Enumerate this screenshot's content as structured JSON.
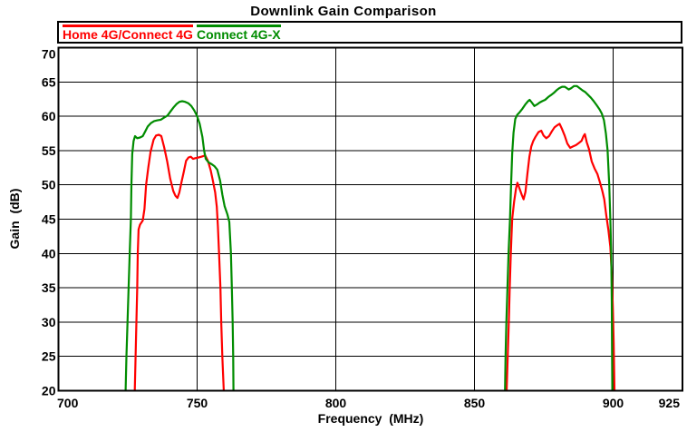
{
  "chart_data": {
    "type": "line",
    "title": "Downlink Gain Comparison",
    "xlabel": "Frequency  (MHz)",
    "ylabel": "Gain  (dB)",
    "xlim": [
      700,
      925
    ],
    "ylim": [
      20,
      70
    ],
    "x_ticks": [
      700,
      750,
      800,
      850,
      900,
      925
    ],
    "y_ticks": [
      70,
      65,
      60,
      55,
      50,
      45,
      40,
      35,
      30,
      25,
      20
    ],
    "x_gridlines": [
      750,
      800,
      850,
      900
    ],
    "y_gridlines": [
      65,
      60,
      55,
      50,
      45,
      40,
      35,
      30,
      25
    ],
    "grid": true,
    "legend_position": "top-left",
    "background_color": "#ffffff",
    "axis_color": "#000000",
    "series": [
      {
        "name": "Home 4G/Connect 4G",
        "color": "#ff0000",
        "segments": [
          [
            [
              727.5,
              20
            ],
            [
              727.8,
              25
            ],
            [
              728.1,
              30
            ],
            [
              728.4,
              35
            ],
            [
              728.6,
              40
            ],
            [
              728.9,
              43.5
            ],
            [
              729.4,
              44.2
            ],
            [
              730.4,
              44.8
            ],
            [
              731.0,
              46.5
            ],
            [
              731.6,
              50.0
            ],
            [
              732.4,
              52.5
            ],
            [
              733.2,
              54.8
            ],
            [
              734.3,
              56.6
            ],
            [
              735.2,
              57.2
            ],
            [
              736.2,
              57.3
            ],
            [
              737.1,
              57.1
            ],
            [
              738.1,
              55.5
            ],
            [
              739.2,
              53.4
            ],
            [
              740.3,
              50.9
            ],
            [
              741.4,
              49.1
            ],
            [
              742.2,
              48.4
            ],
            [
              742.9,
              48.1
            ],
            [
              743.6,
              48.9
            ],
            [
              744.3,
              50.3
            ],
            [
              745.2,
              51.9
            ],
            [
              746.0,
              53.5
            ],
            [
              746.9,
              54.0
            ],
            [
              747.7,
              54.1
            ],
            [
              748.5,
              53.8
            ],
            [
              749.5,
              53.9
            ],
            [
              750.5,
              54.0
            ],
            [
              751.5,
              54.1
            ],
            [
              752.3,
              54.2
            ],
            [
              752.9,
              54.3
            ],
            [
              753.9,
              53.5
            ],
            [
              754.9,
              52.1
            ],
            [
              755.7,
              50.6
            ],
            [
              756.5,
              48.9
            ],
            [
              757.1,
              46.8
            ],
            [
              757.5,
              44.0
            ],
            [
              757.9,
              40.0
            ],
            [
              758.4,
              35.0
            ],
            [
              758.7,
              30.0
            ],
            [
              759.1,
              25.0
            ],
            [
              759.6,
              20
            ]
          ],
          [
            [
              861.6,
              20
            ],
            [
              862.0,
              25
            ],
            [
              862.4,
              30
            ],
            [
              862.7,
              35
            ],
            [
              863.1,
              40
            ],
            [
              863.6,
              45
            ],
            [
              864.3,
              47.6
            ],
            [
              865.0,
              49.5
            ],
            [
              865.5,
              50.3
            ],
            [
              866.3,
              49.4
            ],
            [
              867.1,
              48.5
            ],
            [
              867.7,
              47.9
            ],
            [
              868.4,
              49.0
            ],
            [
              869.1,
              51.6
            ],
            [
              869.8,
              54.1
            ],
            [
              870.5,
              55.6
            ],
            [
              871.2,
              56.4
            ],
            [
              872.0,
              57.0
            ],
            [
              873.1,
              57.7
            ],
            [
              874.1,
              57.9
            ],
            [
              874.9,
              57.2
            ],
            [
              875.9,
              56.8
            ],
            [
              876.9,
              57.1
            ],
            [
              877.9,
              57.8
            ],
            [
              878.9,
              58.4
            ],
            [
              879.9,
              58.7
            ],
            [
              880.7,
              58.9
            ],
            [
              881.5,
              58.2
            ],
            [
              882.5,
              57.2
            ],
            [
              883.5,
              56.0
            ],
            [
              884.5,
              55.4
            ],
            [
              885.5,
              55.6
            ],
            [
              886.6,
              55.8
            ],
            [
              887.6,
              56.1
            ],
            [
              888.6,
              56.4
            ],
            [
              889.3,
              57.1
            ],
            [
              889.8,
              57.4
            ],
            [
              890.5,
              56.2
            ],
            [
              891.3,
              55.2
            ],
            [
              892.3,
              53.4
            ],
            [
              893.3,
              52.4
            ],
            [
              894.3,
              51.6
            ],
            [
              895.3,
              50.3
            ],
            [
              896.1,
              49.1
            ],
            [
              896.8,
              47.9
            ],
            [
              897.5,
              45.6
            ],
            [
              898.3,
              43.4
            ],
            [
              899.0,
              41.0
            ],
            [
              899.5,
              37.0
            ],
            [
              899.9,
              32.0
            ],
            [
              900.2,
              27.0
            ],
            [
              900.5,
              20
            ]
          ]
        ]
      },
      {
        "name": "Connect 4G-X",
        "color": "#008c00",
        "segments": [
          [
            [
              724.2,
              20
            ],
            [
              724.5,
              25
            ],
            [
              724.9,
              30
            ],
            [
              725.3,
              35
            ],
            [
              725.7,
              40
            ],
            [
              726.1,
              45
            ],
            [
              726.3,
              50
            ],
            [
              726.6,
              54.5
            ],
            [
              727.1,
              56.4
            ],
            [
              727.6,
              57.1
            ],
            [
              728.4,
              56.8
            ],
            [
              729.4,
              56.9
            ],
            [
              730.4,
              57.1
            ],
            [
              731.3,
              57.8
            ],
            [
              732.2,
              58.5
            ],
            [
              733.3,
              59.0
            ],
            [
              734.5,
              59.3
            ],
            [
              735.7,
              59.4
            ],
            [
              736.9,
              59.5
            ],
            [
              738.1,
              59.8
            ],
            [
              739.3,
              60.1
            ],
            [
              740.4,
              60.7
            ],
            [
              741.5,
              61.3
            ],
            [
              742.6,
              61.8
            ],
            [
              743.6,
              62.1
            ],
            [
              744.6,
              62.2
            ],
            [
              745.7,
              62.1
            ],
            [
              746.8,
              61.9
            ],
            [
              747.9,
              61.5
            ],
            [
              748.9,
              60.9
            ],
            [
              749.9,
              60.1
            ],
            [
              750.9,
              58.9
            ],
            [
              751.9,
              57.0
            ],
            [
              752.5,
              55.0
            ],
            [
              753.1,
              53.8
            ],
            [
              754.1,
              53.3
            ],
            [
              755.3,
              53.0
            ],
            [
              756.3,
              52.7
            ],
            [
              757.3,
              52.2
            ],
            [
              758.3,
              50.6
            ],
            [
              759.1,
              48.6
            ],
            [
              759.9,
              46.9
            ],
            [
              760.9,
              45.7
            ],
            [
              761.6,
              44.6
            ],
            [
              762.2,
              40.0
            ],
            [
              762.5,
              35.0
            ],
            [
              762.8,
              30.0
            ],
            [
              763.0,
              25.0
            ],
            [
              763.1,
              20
            ]
          ],
          [
            [
              861.0,
              20
            ],
            [
              861.2,
              25
            ],
            [
              861.5,
              30
            ],
            [
              861.9,
              35
            ],
            [
              862.3,
              40
            ],
            [
              862.8,
              45
            ],
            [
              863.2,
              50
            ],
            [
              863.6,
              54.5
            ],
            [
              864.1,
              57.6
            ],
            [
              864.7,
              59.6
            ],
            [
              865.4,
              60.2
            ],
            [
              866.3,
              60.6
            ],
            [
              867.3,
              61.1
            ],
            [
              868.3,
              61.7
            ],
            [
              869.3,
              62.2
            ],
            [
              869.9,
              62.4
            ],
            [
              870.7,
              62.0
            ],
            [
              871.6,
              61.5
            ],
            [
              872.5,
              61.7
            ],
            [
              873.5,
              62.0
            ],
            [
              874.4,
              62.2
            ],
            [
              875.5,
              62.4
            ],
            [
              876.6,
              62.8
            ],
            [
              877.6,
              63.1
            ],
            [
              878.6,
              63.4
            ],
            [
              879.6,
              63.8
            ],
            [
              880.6,
              64.1
            ],
            [
              881.6,
              64.3
            ],
            [
              882.5,
              64.3
            ],
            [
              883.3,
              64.1
            ],
            [
              884.0,
              63.9
            ],
            [
              884.9,
              64.1
            ],
            [
              885.9,
              64.4
            ],
            [
              886.9,
              64.4
            ],
            [
              887.9,
              64.1
            ],
            [
              888.9,
              63.8
            ],
            [
              890.0,
              63.5
            ],
            [
              891.0,
              63.1
            ],
            [
              892.0,
              62.7
            ],
            [
              893.0,
              62.2
            ],
            [
              894.1,
              61.6
            ],
            [
              895.1,
              61.0
            ],
            [
              895.9,
              60.4
            ],
            [
              896.7,
              59.4
            ],
            [
              897.4,
              57.5
            ],
            [
              898.0,
              55.0
            ],
            [
              898.6,
              50.0
            ],
            [
              899.0,
              45.0
            ],
            [
              899.3,
              40.0
            ],
            [
              899.5,
              33.0
            ],
            [
              899.6,
              26.0
            ],
            [
              899.7,
              20
            ]
          ]
        ]
      }
    ]
  }
}
